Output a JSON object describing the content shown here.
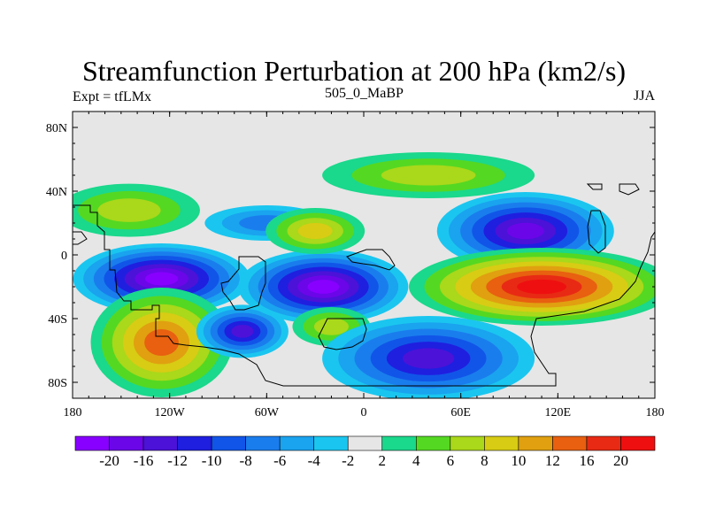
{
  "chart_data": {
    "type": "heatmap",
    "title": "Streamfunction Perturbation at 200 hPa (km2/s)",
    "left_string": "Expt = tfLMx",
    "center_string": "505_0_MaBP",
    "right_string": "JJA",
    "xlim": [
      -180,
      180
    ],
    "ylim": [
      -90,
      90
    ],
    "x_ticks": [
      {
        "value": -180,
        "label": "180"
      },
      {
        "value": -120,
        "label": "120W"
      },
      {
        "value": -60,
        "label": "60W"
      },
      {
        "value": 0,
        "label": "0"
      },
      {
        "value": 60,
        "label": "60E"
      },
      {
        "value": 120,
        "label": "120E"
      },
      {
        "value": 180,
        "label": "180"
      }
    ],
    "y_ticks": [
      {
        "value": 80,
        "label": "80N"
      },
      {
        "value": 40,
        "label": "40N"
      },
      {
        "value": 0,
        "label": "0"
      },
      {
        "value": -40,
        "label": "40S"
      },
      {
        "value": -80,
        "label": "80S"
      }
    ],
    "colorbar": {
      "colors": [
        "#8800ff",
        "#6b06e8",
        "#4c12d8",
        "#1f1fe0",
        "#1155e8",
        "#1a7ded",
        "#1aa3ef",
        "#1ac6ef",
        "#e6e6e6",
        "#1ad88c",
        "#55d822",
        "#aad81a",
        "#d8cc14",
        "#e0a010",
        "#e86010",
        "#e82a14",
        "#ee1010"
      ],
      "labels": [
        "-20",
        "-16",
        "-12",
        "-10",
        "-8",
        "-6",
        "-4",
        "-2",
        "2",
        "4",
        "6",
        "8",
        "10",
        "12",
        "16",
        "20"
      ]
    },
    "features": [
      {
        "name": "north-pacific-positive-center",
        "lon": -145,
        "lat": 28,
        "value": 6
      },
      {
        "name": "subtropical-south-pacific-negative-center",
        "lon": -125,
        "lat": -15,
        "value": -20
      },
      {
        "name": "south-pacific-positive-center",
        "lon": -125,
        "lat": -55,
        "value": 12
      },
      {
        "name": "south-america-negative-center",
        "lon": -75,
        "lat": -48,
        "value": -12
      },
      {
        "name": "tropical-atlantic-negative-center",
        "lon": -25,
        "lat": -20,
        "value": -20
      },
      {
        "name": "north-atlantic-negative-center",
        "lon": -60,
        "lat": 20,
        "value": -6
      },
      {
        "name": "north-africa-positive-center",
        "lon": -30,
        "lat": 15,
        "value": 8
      },
      {
        "name": "south-atlantic-positive-center",
        "lon": -20,
        "lat": -45,
        "value": 6
      },
      {
        "name": "southern-indian-ocean-negative-center",
        "lon": 40,
        "lat": -65,
        "value": -12
      },
      {
        "name": "asia-negative-center",
        "lon": 100,
        "lat": 15,
        "value": -16
      },
      {
        "name": "indian-ocean-positive-center",
        "lon": 110,
        "lat": -20,
        "value": 20
      },
      {
        "name": "eurasia-positive-center",
        "lon": 40,
        "lat": 50,
        "value": 6
      }
    ]
  }
}
